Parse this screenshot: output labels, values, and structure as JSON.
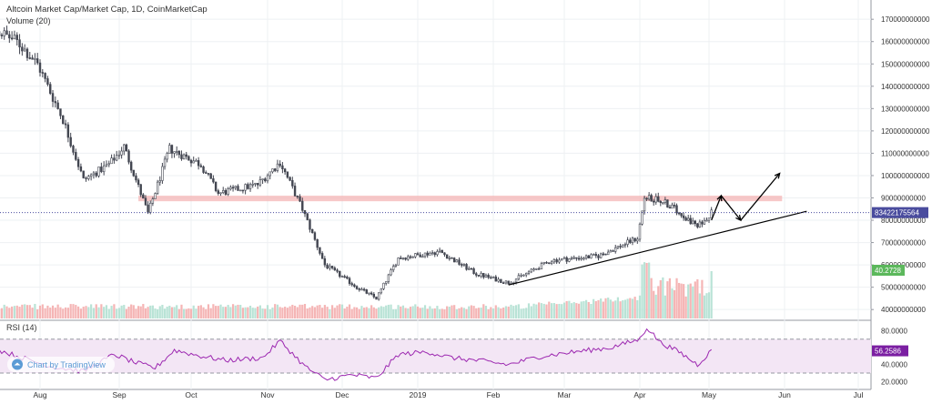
{
  "header": {
    "title": "Altcoin Market Cap/Market Cap, 1D, CoinMarketCap",
    "volume_label": "Volume (20)"
  },
  "rsi_panel": {
    "label": "RSI (14)"
  },
  "watermark": {
    "text": "Chart by TradingView"
  },
  "colors": {
    "up": "#26a69a",
    "down": "#ef5350",
    "candle": "#434651",
    "vol_up": "#b9e3d6",
    "vol_down": "#f5b5b5",
    "zone": "#f4b6b5",
    "rsi_line": "#9c27b0",
    "rsi_band": "#f3e6f5",
    "price_tag": "#4a4c9e",
    "volume_tag": "#5cb85c",
    "rsi_tag": "#7b1fa2"
  },
  "chart_data": [
    {
      "type": "candlestick",
      "x_ticks": [
        "Aug",
        "Sep",
        "Oct",
        "Nov",
        "Dec",
        "2019",
        "Feb",
        "Mar",
        "Apr",
        "May",
        "Jun",
        "Jul"
      ],
      "y_ticks": [
        "40000000000",
        "50000000000",
        "60000000000",
        "70000000000",
        "80000000000",
        "90000000000",
        "100000000000",
        "110000000000",
        "120000000000",
        "130000000000",
        "140000000000",
        "150000000000",
        "160000000000",
        "170000000000"
      ],
      "ylim": [
        36000000000,
        177000000000
      ],
      "key_points": [
        {
          "date": "2018-07-15",
          "value": 165000000000
        },
        {
          "date": "2018-07-23",
          "value": 160000000000
        },
        {
          "date": "2018-07-31",
          "value": 150000000000
        },
        {
          "date": "2018-08-10",
          "value": 125000000000
        },
        {
          "date": "2018-08-18",
          "value": 98000000000
        },
        {
          "date": "2018-08-28",
          "value": 105000000000
        },
        {
          "date": "2018-09-03",
          "value": 113000000000
        },
        {
          "date": "2018-09-13",
          "value": 83000000000
        },
        {
          "date": "2018-09-22",
          "value": 112000000000
        },
        {
          "date": "2018-10-05",
          "value": 105000000000
        },
        {
          "date": "2018-10-12",
          "value": 92000000000
        },
        {
          "date": "2018-10-28",
          "value": 96000000000
        },
        {
          "date": "2018-11-06",
          "value": 106000000000
        },
        {
          "date": "2018-11-15",
          "value": 85000000000
        },
        {
          "date": "2018-11-24",
          "value": 60000000000
        },
        {
          "date": "2018-12-07",
          "value": 50000000000
        },
        {
          "date": "2018-12-15",
          "value": 45000000000
        },
        {
          "date": "2018-12-24",
          "value": 63000000000
        },
        {
          "date": "2019-01-10",
          "value": 66000000000
        },
        {
          "date": "2019-01-25",
          "value": 56000000000
        },
        {
          "date": "2019-02-07",
          "value": 52000000000
        },
        {
          "date": "2019-02-24",
          "value": 62000000000
        },
        {
          "date": "2019-03-15",
          "value": 64000000000
        },
        {
          "date": "2019-03-31",
          "value": 72000000000
        },
        {
          "date": "2019-04-03",
          "value": 90000000000
        },
        {
          "date": "2019-04-10",
          "value": 89000000000
        },
        {
          "date": "2019-04-18",
          "value": 84000000000
        },
        {
          "date": "2019-04-26",
          "value": 77000000000
        },
        {
          "date": "2019-05-02",
          "value": 83422175564
        }
      ],
      "resistance_zone": [
        88500000000,
        91000000000
      ],
      "trendline": [
        {
          "date": "2019-02-07",
          "value": 51000000000
        },
        {
          "date": "2019-06-10",
          "value": 84000000000
        }
      ],
      "projection": [
        {
          "date": "2019-05-02",
          "value": 80000000000
        },
        {
          "date": "2019-05-06",
          "value": 91000000000
        },
        {
          "date": "2019-05-14",
          "value": 80000000000
        },
        {
          "date": "2019-05-30",
          "value": 101000000000
        }
      ],
      "last_value_label": "83422175564",
      "volume_last_label": "40.2728"
    },
    {
      "type": "line",
      "name": "RSI (14)",
      "y_ticks": [
        "80.0000",
        "40.0000",
        "20.0000"
      ],
      "ylim": [
        15,
        88
      ],
      "band": [
        30,
        70
      ],
      "key_points": [
        {
          "date": "2018-07-15",
          "value": 58
        },
        {
          "date": "2018-07-25",
          "value": 48
        },
        {
          "date": "2018-08-05",
          "value": 38
        },
        {
          "date": "2018-08-18",
          "value": 32
        },
        {
          "date": "2018-08-30",
          "value": 52
        },
        {
          "date": "2018-09-08",
          "value": 42
        },
        {
          "date": "2018-09-16",
          "value": 36
        },
        {
          "date": "2018-09-24",
          "value": 57
        },
        {
          "date": "2018-10-05",
          "value": 50
        },
        {
          "date": "2018-10-15",
          "value": 45
        },
        {
          "date": "2018-10-30",
          "value": 48
        },
        {
          "date": "2018-11-06",
          "value": 68
        },
        {
          "date": "2018-11-16",
          "value": 38
        },
        {
          "date": "2018-11-24",
          "value": 22
        },
        {
          "date": "2018-12-05",
          "value": 28
        },
        {
          "date": "2018-12-15",
          "value": 24
        },
        {
          "date": "2018-12-24",
          "value": 52
        },
        {
          "date": "2019-01-05",
          "value": 55
        },
        {
          "date": "2019-01-15",
          "value": 48
        },
        {
          "date": "2019-01-28",
          "value": 44
        },
        {
          "date": "2019-02-07",
          "value": 40
        },
        {
          "date": "2019-02-20",
          "value": 50
        },
        {
          "date": "2019-03-05",
          "value": 55
        },
        {
          "date": "2019-03-20",
          "value": 60
        },
        {
          "date": "2019-04-01",
          "value": 70
        },
        {
          "date": "2019-04-04",
          "value": 84
        },
        {
          "date": "2019-04-10",
          "value": 66
        },
        {
          "date": "2019-04-18",
          "value": 55
        },
        {
          "date": "2019-04-26",
          "value": 40
        },
        {
          "date": "2019-05-02",
          "value": 56.2586
        }
      ],
      "last_value_label": "56.2586"
    }
  ]
}
